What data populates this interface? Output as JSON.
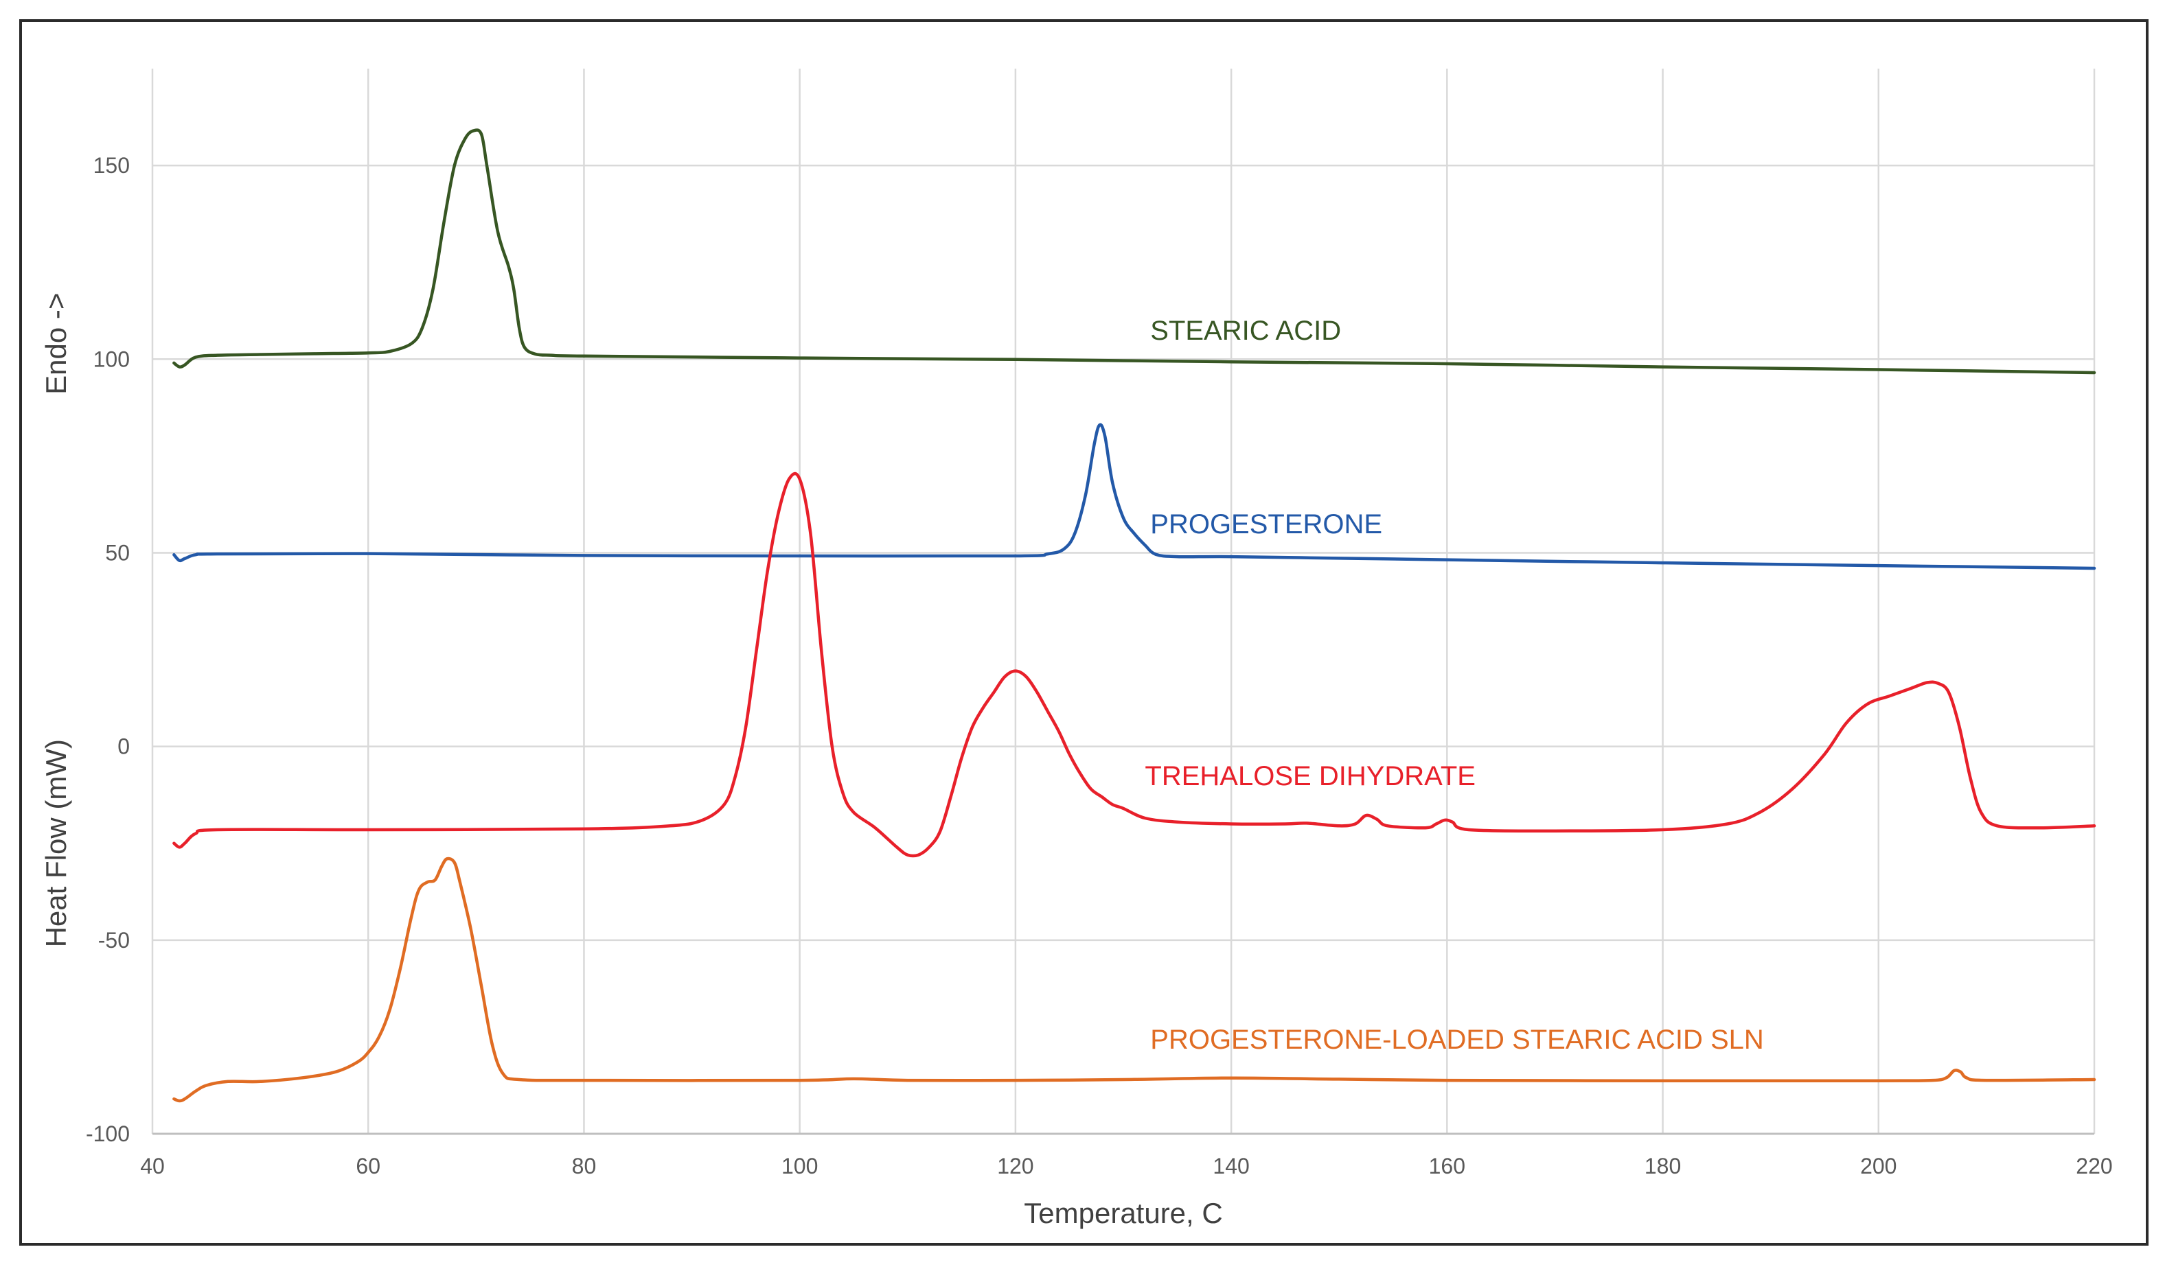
{
  "chart_data": {
    "type": "line",
    "title": "",
    "xlabel": "Temperature, C",
    "ylabel_bottom": "Heat Flow (mW)",
    "ylabel_top": "Endo ->",
    "xlim": [
      40,
      220
    ],
    "ylim": [
      -100,
      175
    ],
    "x_ticks": [
      "40",
      "60",
      "80",
      "100",
      "120",
      "140",
      "160",
      "180",
      "200",
      "220"
    ],
    "y_ticks": [
      "-100",
      "-50",
      "0",
      "50",
      "100",
      "150"
    ],
    "grid": true,
    "series": [
      {
        "name": "STEARIC ACID",
        "color": "#375623",
        "points": [
          [
            42,
            99
          ],
          [
            42.5,
            98
          ],
          [
            43,
            98.5
          ],
          [
            44,
            100.5
          ],
          [
            46,
            101
          ],
          [
            50,
            101.2
          ],
          [
            55,
            101.4
          ],
          [
            60,
            101.6
          ],
          [
            62,
            102
          ],
          [
            64,
            104
          ],
          [
            65,
            108
          ],
          [
            66,
            118
          ],
          [
            67,
            135
          ],
          [
            68,
            150
          ],
          [
            69,
            157
          ],
          [
            69.8,
            159
          ],
          [
            70.5,
            158
          ],
          [
            71,
            150
          ],
          [
            72,
            133
          ],
          [
            73,
            124
          ],
          [
            73.5,
            118
          ],
          [
            74,
            108
          ],
          [
            74.5,
            103
          ],
          [
            75.5,
            101.3
          ],
          [
            77,
            101
          ],
          [
            80,
            100.8
          ],
          [
            100,
            100.3
          ],
          [
            120,
            99.9
          ],
          [
            140,
            99.3
          ],
          [
            160,
            98.8
          ],
          [
            180,
            98
          ],
          [
            200,
            97.3
          ],
          [
            220,
            96.5
          ]
        ]
      },
      {
        "name": "PROGESTERONE",
        "color": "#2359a8",
        "points": [
          [
            42,
            49.5
          ],
          [
            42.5,
            48
          ],
          [
            43,
            48.5
          ],
          [
            44,
            49.5
          ],
          [
            46,
            49.7
          ],
          [
            60,
            49.8
          ],
          [
            80,
            49.3
          ],
          [
            100,
            49.2
          ],
          [
            120,
            49.2
          ],
          [
            123,
            49.7
          ],
          [
            124.5,
            51
          ],
          [
            125.5,
            55
          ],
          [
            126.5,
            65
          ],
          [
            127.3,
            78
          ],
          [
            127.8,
            83
          ],
          [
            128.3,
            80
          ],
          [
            129,
            68
          ],
          [
            130,
            59
          ],
          [
            131,
            55
          ],
          [
            132,
            52
          ],
          [
            133,
            49.6
          ],
          [
            135,
            49
          ],
          [
            140,
            49
          ],
          [
            150,
            48.6
          ],
          [
            160,
            48.2
          ],
          [
            180,
            47.4
          ],
          [
            200,
            46.7
          ],
          [
            220,
            46
          ]
        ]
      },
      {
        "name": "TREHALOSE DIHYDRATE",
        "color": "#e8202a",
        "points": [
          [
            42,
            -25
          ],
          [
            42.5,
            -26
          ],
          [
            43,
            -25
          ],
          [
            44,
            -22.5
          ],
          [
            46,
            -21.5
          ],
          [
            60,
            -21.5
          ],
          [
            80,
            -21.3
          ],
          [
            88,
            -20.5
          ],
          [
            91,
            -19
          ],
          [
            93,
            -15
          ],
          [
            94,
            -8
          ],
          [
            95,
            5
          ],
          [
            96,
            25
          ],
          [
            97,
            45
          ],
          [
            98,
            60
          ],
          [
            99,
            69
          ],
          [
            100,
            69
          ],
          [
            101,
            55
          ],
          [
            102,
            25
          ],
          [
            103,
            0
          ],
          [
            104,
            -12
          ],
          [
            105,
            -17
          ],
          [
            107,
            -21
          ],
          [
            109,
            -26
          ],
          [
            110,
            -28
          ],
          [
            111,
            -28
          ],
          [
            112,
            -26
          ],
          [
            113,
            -22
          ],
          [
            114,
            -13
          ],
          [
            115,
            -3
          ],
          [
            116,
            5
          ],
          [
            117,
            10
          ],
          [
            118,
            14
          ],
          [
            119,
            18
          ],
          [
            120,
            19.5
          ],
          [
            121,
            18
          ],
          [
            122,
            14
          ],
          [
            123,
            9
          ],
          [
            124,
            4
          ],
          [
            125,
            -2
          ],
          [
            126,
            -7
          ],
          [
            127,
            -11
          ],
          [
            128,
            -13
          ],
          [
            129,
            -15
          ],
          [
            130,
            -16
          ],
          [
            132,
            -18.5
          ],
          [
            135,
            -19.5
          ],
          [
            140,
            -20
          ],
          [
            145,
            -20
          ],
          [
            147,
            -19.8
          ],
          [
            150,
            -20.5
          ],
          [
            151.5,
            -20
          ],
          [
            152.5,
            -17.8
          ],
          [
            153.5,
            -18.8
          ],
          [
            154.5,
            -20.5
          ],
          [
            158,
            -21
          ],
          [
            159,
            -20
          ],
          [
            159.8,
            -19
          ],
          [
            160.5,
            -19.5
          ],
          [
            162,
            -21.5
          ],
          [
            170,
            -21.8
          ],
          [
            180,
            -21.5
          ],
          [
            186,
            -20
          ],
          [
            189,
            -17
          ],
          [
            192,
            -11
          ],
          [
            195,
            -2
          ],
          [
            197,
            6
          ],
          [
            199,
            11
          ],
          [
            201,
            13
          ],
          [
            203,
            15
          ],
          [
            204.5,
            16.5
          ],
          [
            205.5,
            16.3
          ],
          [
            206.5,
            14
          ],
          [
            207.5,
            5
          ],
          [
            208.5,
            -8
          ],
          [
            209.5,
            -17
          ],
          [
            211,
            -20.5
          ],
          [
            215,
            -21
          ],
          [
            220,
            -20.5
          ]
        ]
      },
      {
        "name": "PROGESTERONE-LOADED STEARIC ACID SLN",
        "color": "#e06c23",
        "points": [
          [
            42,
            -91
          ],
          [
            42.5,
            -91.5
          ],
          [
            43,
            -91
          ],
          [
            44,
            -89
          ],
          [
            45,
            -87.5
          ],
          [
            47,
            -86.5
          ],
          [
            50,
            -86.5
          ],
          [
            54,
            -85.5
          ],
          [
            57,
            -84
          ],
          [
            59,
            -81.5
          ],
          [
            60,
            -79
          ],
          [
            61,
            -75
          ],
          [
            62,
            -68
          ],
          [
            63,
            -57
          ],
          [
            64,
            -44
          ],
          [
            64.7,
            -37
          ],
          [
            65.5,
            -35
          ],
          [
            66.2,
            -34.5
          ],
          [
            66.8,
            -31
          ],
          [
            67.3,
            -29
          ],
          [
            68,
            -30
          ],
          [
            68.5,
            -35
          ],
          [
            69.5,
            -47
          ],
          [
            70.5,
            -62
          ],
          [
            71.5,
            -77
          ],
          [
            72.5,
            -84.5
          ],
          [
            74,
            -86
          ],
          [
            80,
            -86.2
          ],
          [
            100,
            -86.2
          ],
          [
            105,
            -85.8
          ],
          [
            110,
            -86.2
          ],
          [
            120,
            -86.2
          ],
          [
            130,
            -86
          ],
          [
            140,
            -85.6
          ],
          [
            150,
            -85.9
          ],
          [
            160,
            -86.2
          ],
          [
            180,
            -86.3
          ],
          [
            200,
            -86.3
          ],
          [
            205,
            -86.2
          ],
          [
            206.3,
            -85.5
          ],
          [
            207,
            -83.7
          ],
          [
            207.6,
            -84
          ],
          [
            208.2,
            -85.6
          ],
          [
            210,
            -86.2
          ],
          [
            220,
            -86
          ]
        ]
      }
    ],
    "annotations": [
      {
        "text": "STEARIC ACID",
        "x": 132.5,
        "y": 105,
        "color": "#375623"
      },
      {
        "text": "PROGESTERONE",
        "x": 132.5,
        "y": 55,
        "color": "#2359a8"
      },
      {
        "text": "TREHALOSE DIHYDRATE",
        "x": 132,
        "y": -10,
        "color": "#e8202a"
      },
      {
        "text": "PROGESTERONE-LOADED STEARIC ACID SLN",
        "x": 132.5,
        "y": -78,
        "color": "#e06c23"
      }
    ]
  }
}
